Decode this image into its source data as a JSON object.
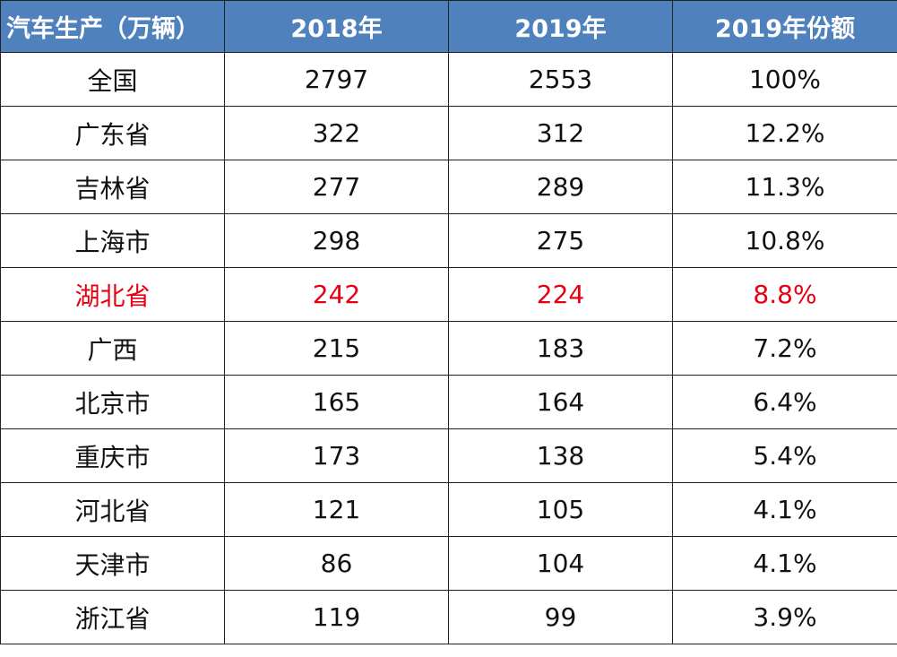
{
  "chart_data": {
    "type": "table",
    "columns": [
      "汽车生产（万辆）",
      "2018年",
      "2019年",
      "2019年份额"
    ],
    "rows": [
      {
        "region": "全国",
        "y2018": "2797",
        "y2019": "2553",
        "share": "100%"
      },
      {
        "region": "广东省",
        "y2018": "322",
        "y2019": "312",
        "share": "12.2%"
      },
      {
        "region": "吉林省",
        "y2018": "277",
        "y2019": "289",
        "share": "11.3%"
      },
      {
        "region": "上海市",
        "y2018": "298",
        "y2019": "275",
        "share": "10.8%"
      },
      {
        "region": "湖北省",
        "y2018": "242",
        "y2019": "224",
        "share": "8.8%",
        "highlight": true
      },
      {
        "region": "广西",
        "y2018": "215",
        "y2019": "183",
        "share": "7.2%"
      },
      {
        "region": "北京市",
        "y2018": "165",
        "y2019": "164",
        "share": "6.4%"
      },
      {
        "region": "重庆市",
        "y2018": "173",
        "y2019": "138",
        "share": "5.4%"
      },
      {
        "region": "河北省",
        "y2018": "121",
        "y2019": "105",
        "share": "4.1%"
      },
      {
        "region": "天津市",
        "y2018": "86",
        "y2019": "104",
        "share": "4.1%"
      },
      {
        "region": "浙江省",
        "y2018": "119",
        "y2019": "99",
        "share": "3.9%"
      }
    ]
  },
  "colors": {
    "header_bg": "#4f81bd",
    "header_text": "#ffffff",
    "highlight_text": "#e60012",
    "body_text": "#111111",
    "border": "#222222"
  }
}
